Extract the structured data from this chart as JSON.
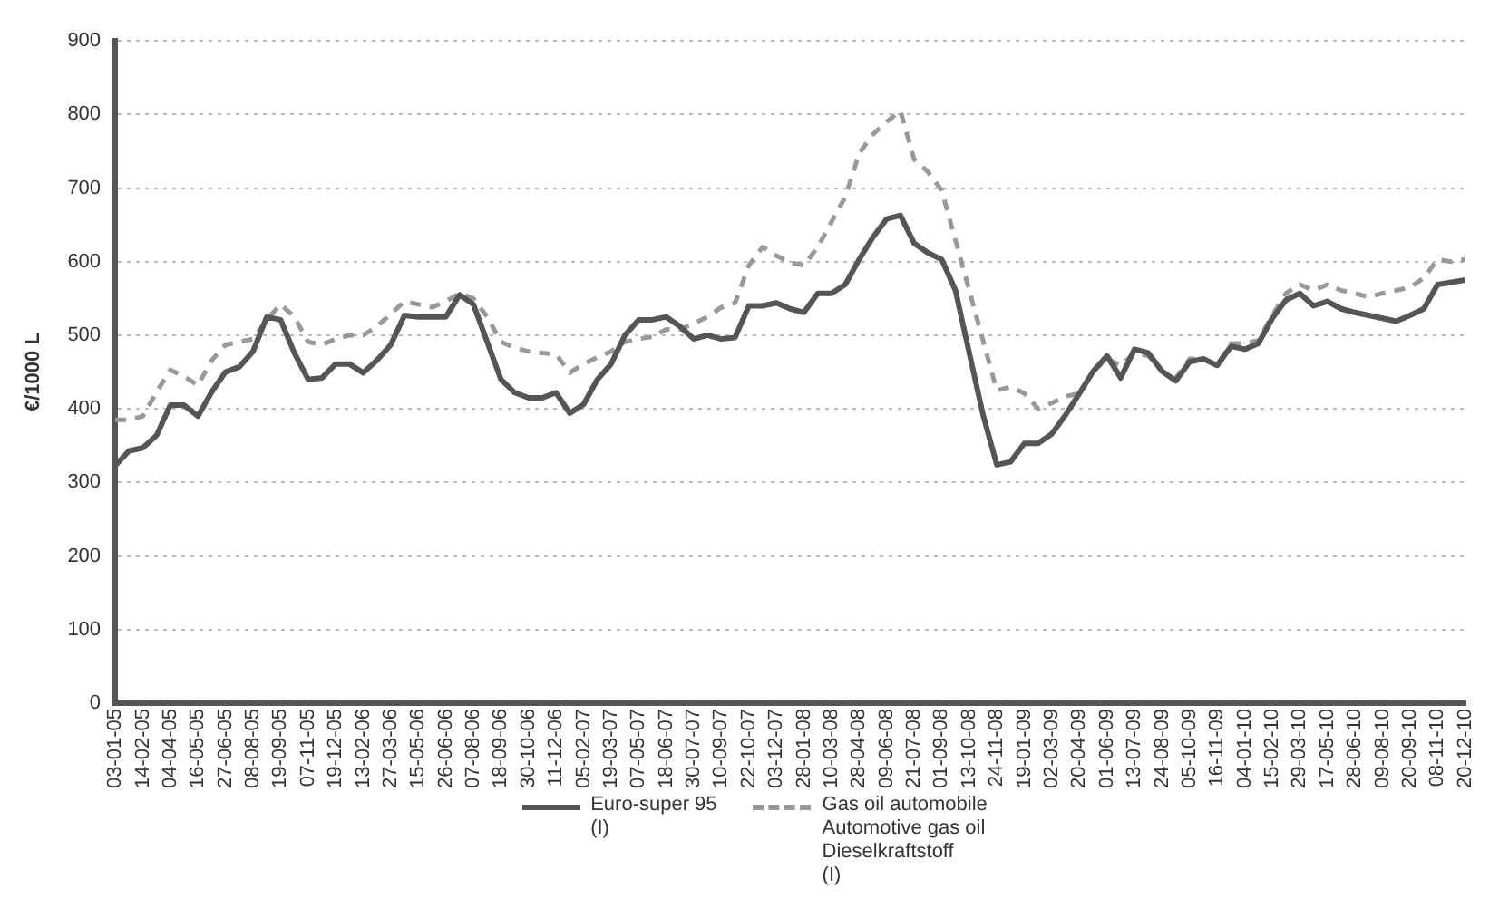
{
  "chart_data": {
    "type": "line",
    "ylabel": "€/1000 L",
    "categories": [
      "03-01-05",
      null,
      "14-02-05",
      null,
      "04-04-05",
      null,
      "16-05-05",
      null,
      "27-06-05",
      null,
      "08-08-05",
      null,
      "19-09-05",
      null,
      "07-11-05",
      null,
      "19-12-05",
      null,
      "13-02-06",
      null,
      "27-03-06",
      null,
      "15-05-06",
      null,
      "26-06-06",
      null,
      "07-08-06",
      null,
      "18-09-06",
      null,
      "30-10-06",
      null,
      "11-12-06",
      null,
      "05-02-07",
      null,
      "19-03-07",
      null,
      "07-05-07",
      null,
      "18-06-07",
      null,
      "30-07-07",
      null,
      "10-09-07",
      null,
      "22-10-07",
      null,
      "03-12-07",
      null,
      "28-01-08",
      null,
      "10-03-08",
      null,
      "28-04-08",
      null,
      "09-06-08",
      null,
      "21-07-08",
      null,
      "01-09-08",
      null,
      "13-10-08",
      null,
      "24-11-08",
      null,
      "19-01-09",
      null,
      "02-03-09",
      null,
      "20-04-09",
      null,
      "01-06-09",
      null,
      "13-07-09",
      null,
      "24-08-09",
      null,
      "05-10-09",
      null,
      "16-11-09",
      null,
      "04-01-10",
      null,
      "15-02-10",
      null,
      "29-03-10",
      null,
      "17-05-10",
      null,
      "28-06-10",
      null,
      "09-08-10",
      null,
      "20-09-10",
      null,
      "08-11-10",
      null,
      "20-12-10"
    ],
    "series": [
      {
        "name": "Euro-super 95\n(I)",
        "color": "#555555",
        "line_style": "solid",
        "values": [
          323,
          343,
          347,
          364,
          405,
          405,
          390,
          423,
          450,
          457,
          478,
          525,
          521,
          476,
          440,
          442,
          461,
          461,
          449,
          466,
          487,
          527,
          525,
          525,
          525,
          555,
          542,
          491,
          440,
          422,
          415,
          415,
          422,
          394,
          406,
          440,
          461,
          500,
          521,
          521,
          525,
          512,
          495,
          500,
          495,
          497,
          540,
          540,
          544,
          536,
          531,
          557,
          557,
          569,
          603,
          633,
          658,
          663,
          625,
          612,
          603,
          561,
          476,
          392,
          324,
          328,
          353,
          353,
          366,
          392,
          421,
          451,
          472,
          442,
          481,
          476,
          451,
          438,
          464,
          468,
          459,
          485,
          481,
          489,
          523,
          548,
          557,
          540,
          546,
          536,
          531,
          527,
          523,
          519,
          527,
          536,
          569,
          572,
          575
        ]
      },
      {
        "name": "Gas oil automobile\nAutomotive gas oil\nDieselkraftstoff\n(I)",
        "color": "#999999",
        "line_style": "dashed",
        "values": [
          385,
          385,
          390,
          423,
          453,
          444,
          432,
          466,
          487,
          491,
          495,
          521,
          542,
          525,
          491,
          487,
          495,
          500,
          500,
          512,
          529,
          546,
          542,
          538,
          546,
          557,
          550,
          525,
          491,
          483,
          478,
          476,
          474,
          449,
          461,
          470,
          478,
          491,
          495,
          498,
          508,
          508,
          516,
          525,
          538,
          544,
          595,
          620,
          608,
          599,
          595,
          620,
          654,
          688,
          747,
          773,
          790,
          805,
          739,
          722,
          697,
          629,
          561,
          493,
          425,
          430,
          421,
          400,
          408,
          417,
          421,
          451,
          468,
          459,
          476,
          472,
          451,
          442,
          468,
          468,
          459,
          489,
          489,
          493,
          527,
          557,
          569,
          561,
          569,
          561,
          557,
          552,
          557,
          561,
          565,
          578,
          603,
          600,
          603
        ]
      }
    ],
    "ylim": [
      0,
      900
    ],
    "yticks": [
      0,
      100,
      200,
      300,
      400,
      500,
      600,
      700,
      800,
      900
    ],
    "grid": "y",
    "legend": "bottom",
    "marker": "none"
  }
}
